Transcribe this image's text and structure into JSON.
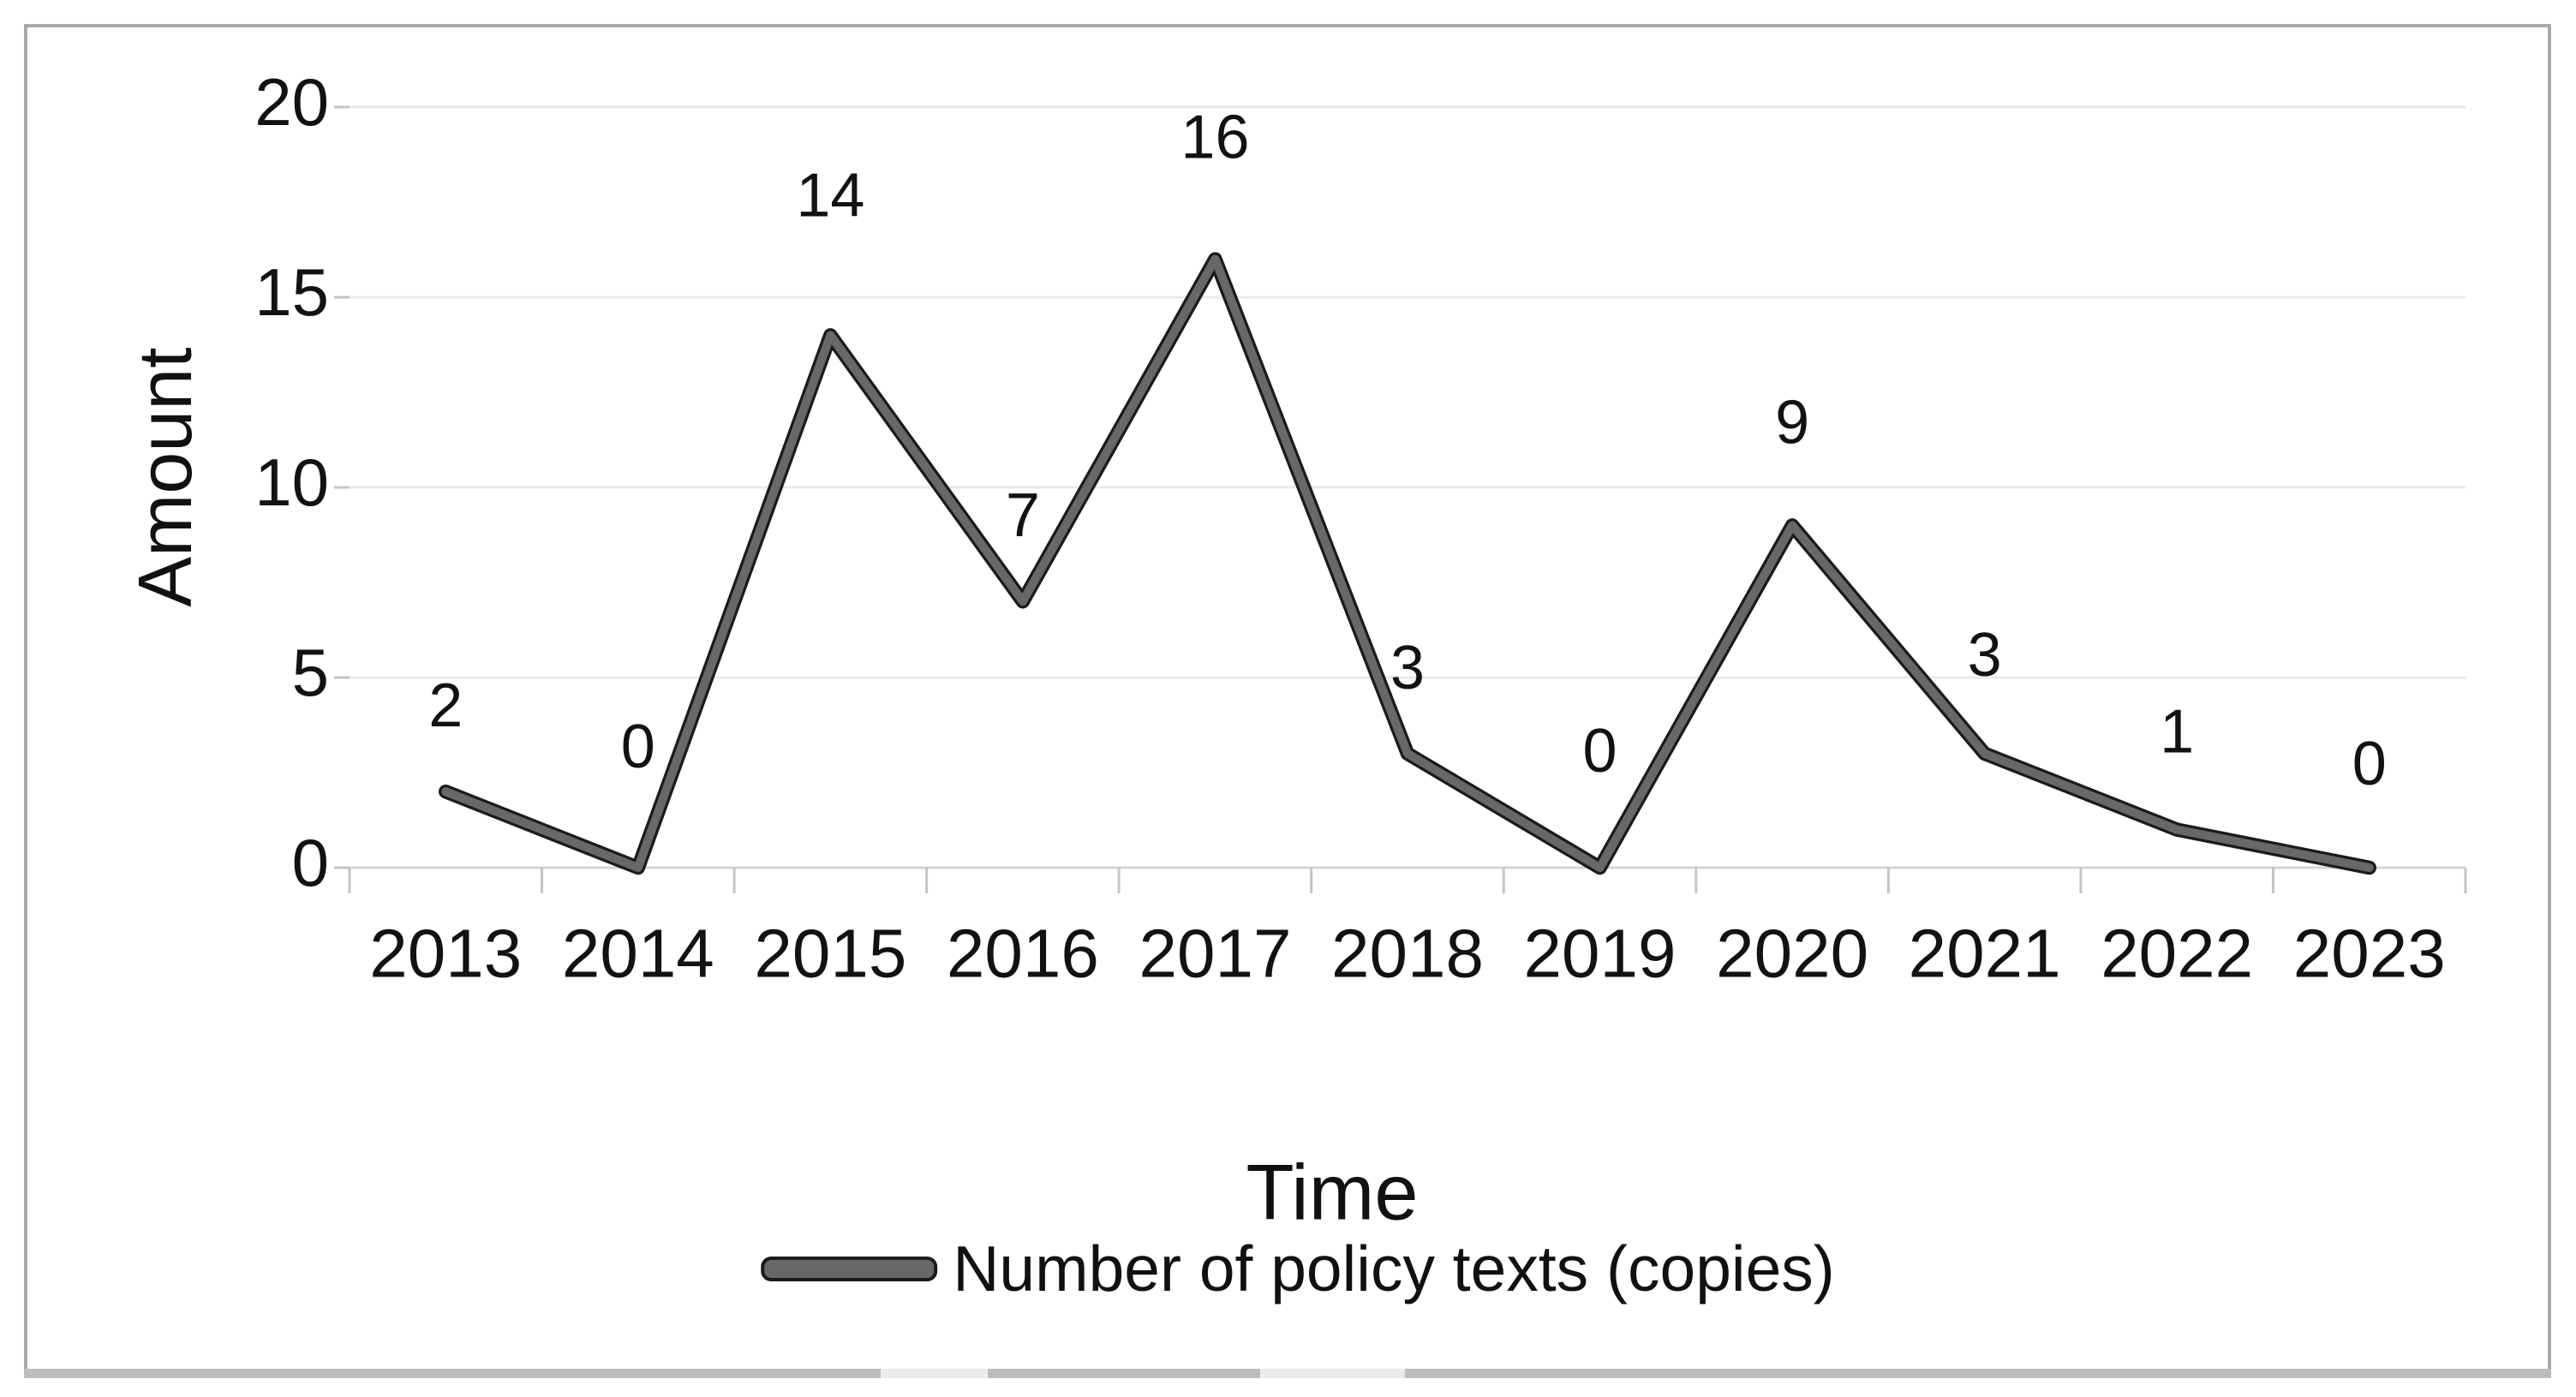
{
  "chart_data": {
    "type": "line",
    "categories": [
      "2013",
      "2014",
      "2015",
      "2016",
      "2017",
      "2018",
      "2019",
      "2020",
      "2021",
      "2022",
      "2023"
    ],
    "series": [
      {
        "name": "Number of policy texts (copies)",
        "values": [
          2,
          0,
          14,
          7,
          16,
          3,
          0,
          9,
          3,
          1,
          0
        ]
      }
    ],
    "data_labels": [
      2,
      0,
      14,
      7,
      16,
      3,
      0,
      9,
      3,
      1,
      0
    ],
    "xlabel": "Time",
    "ylabel": "Amount",
    "yticks": [
      0,
      5,
      10,
      15,
      20
    ],
    "ylim": [
      0,
      20
    ],
    "grid": "horizontal gridlines on",
    "legend_position": "bottom",
    "colors": {
      "line_core": "#686868",
      "line_outline": "#1b1b1b",
      "gridline": "#e9e9e9",
      "axis_line": "#d4d4d4",
      "tick": "#c4c4c4",
      "text": "#121212",
      "frame_border": "#a9a9a9",
      "bottom_strip": "#bdbdbd"
    }
  }
}
